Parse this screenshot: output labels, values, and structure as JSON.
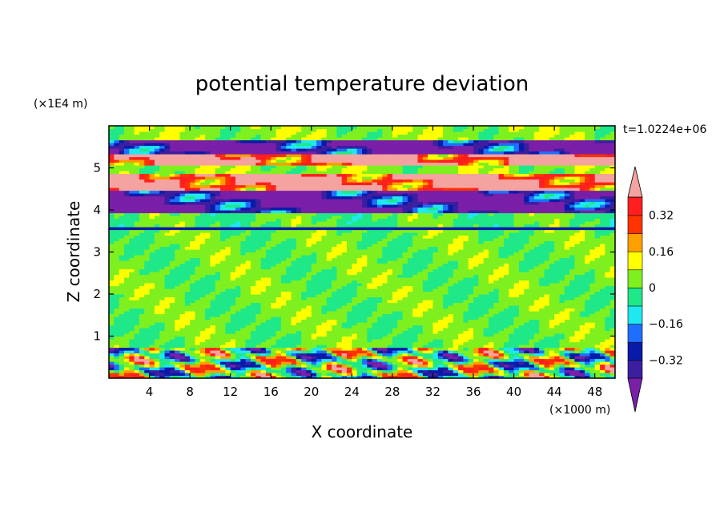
{
  "chart_data": {
    "type": "heatmap",
    "title": "potential temperature deviation",
    "time_label": "t=1.0224e+06",
    "xlabel": "X coordinate",
    "ylabel": "Z coordinate",
    "x_unit": "(×1000 m)",
    "y_unit": "(×1E4 m)",
    "xlim": [
      0,
      50
    ],
    "ylim": [
      0,
      6
    ],
    "x_ticks": [
      "4",
      "8",
      "12",
      "16",
      "20",
      "24",
      "28",
      "32",
      "36",
      "40",
      "44",
      "48"
    ],
    "y_ticks": [
      "1",
      "2",
      "3",
      "4",
      "5"
    ],
    "colorbar": {
      "tick_labels": [
        "0.32",
        "0.16",
        "0",
        "-0.16",
        "-0.32"
      ],
      "levels": [
        -0.4,
        -0.32,
        -0.24,
        -0.16,
        -0.08,
        0,
        0.08,
        0.16,
        0.24,
        0.32,
        0.4
      ],
      "colors": [
        "#7a1fa8",
        "#3c1fa0",
        "#0a1aa8",
        "#1f6fff",
        "#1fe8f0",
        "#1fe889",
        "#7ff01f",
        "#ffff00",
        "#ff9f00",
        "#ff3300",
        "#ff1f1f",
        "#f4a3a0"
      ],
      "extend": "both"
    },
    "bands": [
      {
        "z0": 0.0,
        "z1": 0.75,
        "value": 0.0,
        "pattern": "turbulent"
      },
      {
        "z0": 0.75,
        "z1": 3.55,
        "value": 0.02,
        "pattern": "mixed"
      },
      {
        "z0": 3.55,
        "z1": 3.62,
        "value": -0.3,
        "pattern": "line"
      },
      {
        "z0": 3.62,
        "z1": 3.95,
        "value": 0.0,
        "pattern": "mixed"
      },
      {
        "z0": 3.95,
        "z1": 4.45,
        "value": -0.45,
        "pattern": "layer"
      },
      {
        "z0": 4.45,
        "z1": 4.85,
        "value": 0.45,
        "pattern": "layer"
      },
      {
        "z0": 4.85,
        "z1": 5.05,
        "value": 0.05,
        "pattern": "mixed"
      },
      {
        "z0": 5.05,
        "z1": 5.35,
        "value": 0.45,
        "pattern": "layer"
      },
      {
        "z0": 5.35,
        "z1": 5.65,
        "value": -0.45,
        "pattern": "layer"
      },
      {
        "z0": 5.65,
        "z1": 6.0,
        "value": 0.05,
        "pattern": "mixed"
      }
    ]
  }
}
